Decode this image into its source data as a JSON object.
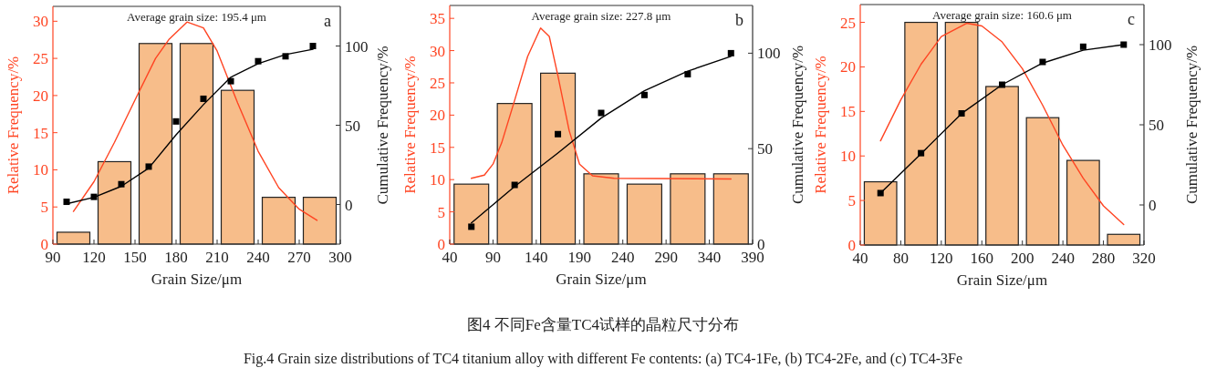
{
  "chart_data": [
    {
      "type": "bar",
      "xlabel": "Grain Size/μm",
      "ylabel": "Relative Frequency/%",
      "y2label": "Cumulative Frequency/%",
      "annotations": [
        "Average grain size: 195.4 μm",
        "a",
        "图4 不同Fe含量TC4试样的晶粒尺寸分布",
        "Fig.4 Grain size distributions of TC4 titanium alloy with different Fe contents: (a) TC4-1Fe, (b) TC4-2Fe, and (c) TC4-3Fe"
      ],
      "xlim": [
        90,
        300
      ],
      "xticks": [
        90,
        120,
        150,
        180,
        210,
        240,
        270,
        300
      ],
      "ylim": [
        0,
        32
      ],
      "yticks": [
        0,
        5,
        10,
        15,
        20,
        25,
        30
      ],
      "y2lim": [
        -25,
        125
      ],
      "y2ticks": [
        0,
        50,
        100
      ],
      "series": [
        {
          "color": "#f7bd8a",
          "x": [
            105,
            135,
            165,
            195,
            225,
            255,
            285
          ],
          "values": [
            1.6,
            11.1,
            27.0,
            27.0,
            20.7,
            6.3,
            6.3
          ]
        },
        {
          "type": "line",
          "color": "#ff4422",
          "marker": "none",
          "x": [
            105,
            120,
            135,
            150,
            165,
            175,
            188,
            200,
            210,
            225,
            240,
            255,
            270,
            283
          ],
          "values": [
            4.4,
            8.4,
            13.7,
            19.4,
            25.0,
            27.6,
            29.9,
            29.1,
            26.0,
            19.0,
            12.5,
            7.6,
            4.7,
            3.2
          ]
        },
        {
          "type": "scatter",
          "axis": "y2",
          "color": "#000000",
          "marker": "square",
          "x": [
            100,
            120,
            140,
            160,
            180,
            200,
            220,
            240,
            260,
            280
          ],
          "values": [
            1.7,
            4.8,
            12.8,
            23.9,
            52.4,
            66.7,
            77.8,
            90.4,
            93.5,
            100
          ]
        },
        {
          "type": "line",
          "axis": "y2",
          "color": "#000000",
          "marker": "none",
          "x": [
            100,
            120,
            140,
            160,
            180,
            200,
            220,
            240,
            260,
            280
          ],
          "values": [
            0.4,
            4.5,
            11.5,
            22.9,
            44,
            63,
            80.3,
            88.9,
            94.6,
            97.9
          ]
        }
      ]
    },
    {
      "type": "bar",
      "xlabel": "Grain Size/μm",
      "ylabel": "Relative Frequency/%",
      "y2label": "Cumulative Frequency/%",
      "annotations": [
        "Average grain size: 227.8 μm",
        "b"
      ],
      "xlim": [
        40,
        390
      ],
      "xticks": [
        40,
        90,
        140,
        190,
        240,
        290,
        340,
        390
      ],
      "ylim": [
        0,
        37
      ],
      "yticks": [
        0,
        5,
        10,
        15,
        20,
        25,
        30,
        35
      ],
      "y2lim": [
        0,
        125
      ],
      "y2ticks": [
        0,
        50,
        100
      ],
      "series": [
        {
          "color": "#f7bd8a",
          "x": [
            65,
            115,
            165,
            215,
            265,
            315,
            365
          ],
          "values": [
            9.3,
            21.8,
            26.5,
            10.9,
            9.3,
            10.9,
            10.9
          ]
        },
        {
          "type": "line",
          "color": "#ff4422",
          "marker": "none",
          "x": [
            65,
            80,
            90,
            100,
            115,
            130,
            145,
            155,
            165,
            178,
            190,
            205,
            230,
            365
          ],
          "values": [
            10.2,
            10.7,
            12.4,
            15.7,
            22.3,
            29.1,
            33.5,
            32.2,
            26.1,
            17.6,
            12.4,
            10.6,
            10.2,
            10.1
          ]
        },
        {
          "type": "scatter",
          "axis": "y2",
          "color": "#000000",
          "marker": "square",
          "x": [
            65,
            115,
            165,
            215,
            265,
            315,
            365
          ],
          "values": [
            9.1,
            31.0,
            57.6,
            68.7,
            78.1,
            89.0,
            100
          ]
        },
        {
          "type": "line",
          "axis": "y2",
          "color": "#000000",
          "marker": "none",
          "x": [
            65,
            115,
            165,
            215,
            265,
            315,
            365
          ],
          "values": [
            11.1,
            30.2,
            47.7,
            66,
            80.3,
            90.6,
            98.3
          ]
        }
      ]
    },
    {
      "type": "bar",
      "xlabel": "Grain Size/μm",
      "ylabel": "Relative Frequency/%",
      "y2label": "Cumulative Frequency/%",
      "annotations": [
        "Average grain size: 160.6 μm",
        "c"
      ],
      "xlim": [
        40,
        320
      ],
      "xticks": [
        40,
        80,
        120,
        160,
        200,
        240,
        280,
        320
      ],
      "ylim": [
        0,
        27
      ],
      "yticks": [
        0,
        5,
        10,
        15,
        20,
        25
      ],
      "y2lim": [
        -25,
        125
      ],
      "y2ticks": [
        0,
        50,
        100
      ],
      "series": [
        {
          "color": "#f7bd8a",
          "x": [
            60,
            100,
            140,
            180,
            220,
            260,
            300
          ],
          "values": [
            7.1,
            25.0,
            25.0,
            17.8,
            14.3,
            9.5,
            1.2
          ]
        },
        {
          "type": "line",
          "color": "#ff4422",
          "marker": "none",
          "x": [
            60,
            80,
            100,
            120,
            145,
            160,
            180,
            200,
            220,
            240,
            260,
            280,
            300
          ],
          "values": [
            11.7,
            16.3,
            20.3,
            23.4,
            24.9,
            24.6,
            22.8,
            19.8,
            15.7,
            11.2,
            7.5,
            4.4,
            2.3
          ]
        },
        {
          "type": "scatter",
          "axis": "y2",
          "color": "#000000",
          "marker": "square",
          "x": [
            60,
            100,
            140,
            180,
            220,
            260,
            300
          ],
          "values": [
            7.4,
            32.3,
            57.1,
            75.0,
            89.2,
            98.7,
            100
          ]
        },
        {
          "type": "line",
          "axis": "y2",
          "color": "#000000",
          "marker": "none",
          "x": [
            60,
            100,
            140,
            180,
            220,
            260,
            300
          ],
          "values": [
            7.4,
            32,
            57,
            75,
            88.5,
            96.5,
            100
          ]
        }
      ]
    }
  ]
}
